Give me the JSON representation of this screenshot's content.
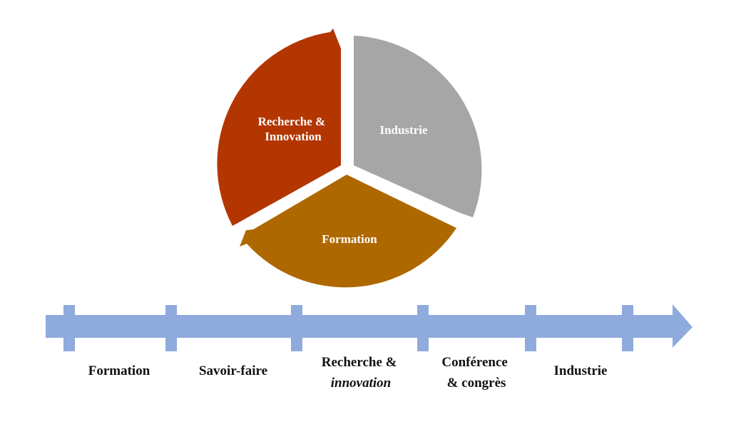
{
  "colors": {
    "recherche": "#b33600",
    "industrie": "#a6a6a6",
    "formation": "#af6800",
    "timeline": "#8faadc",
    "segment_text": "#ffffff",
    "timeline_text": "#111111"
  },
  "cycle": {
    "segments": [
      {
        "name": "recherche",
        "lines": [
          "Recherche &",
          "Innovation"
        ]
      },
      {
        "name": "industrie",
        "lines": [
          "Industrie"
        ]
      },
      {
        "name": "formation",
        "lines": [
          "Formation"
        ]
      }
    ]
  },
  "timeline": {
    "steps": [
      {
        "lines": [
          "Formation"
        ]
      },
      {
        "lines": [
          "Savoir-faire"
        ]
      },
      {
        "lines": [
          "Recherche &",
          "innovation"
        ]
      },
      {
        "lines": [
          "Conférence",
          "& congrès"
        ]
      },
      {
        "lines": [
          "Industrie"
        ]
      }
    ]
  }
}
